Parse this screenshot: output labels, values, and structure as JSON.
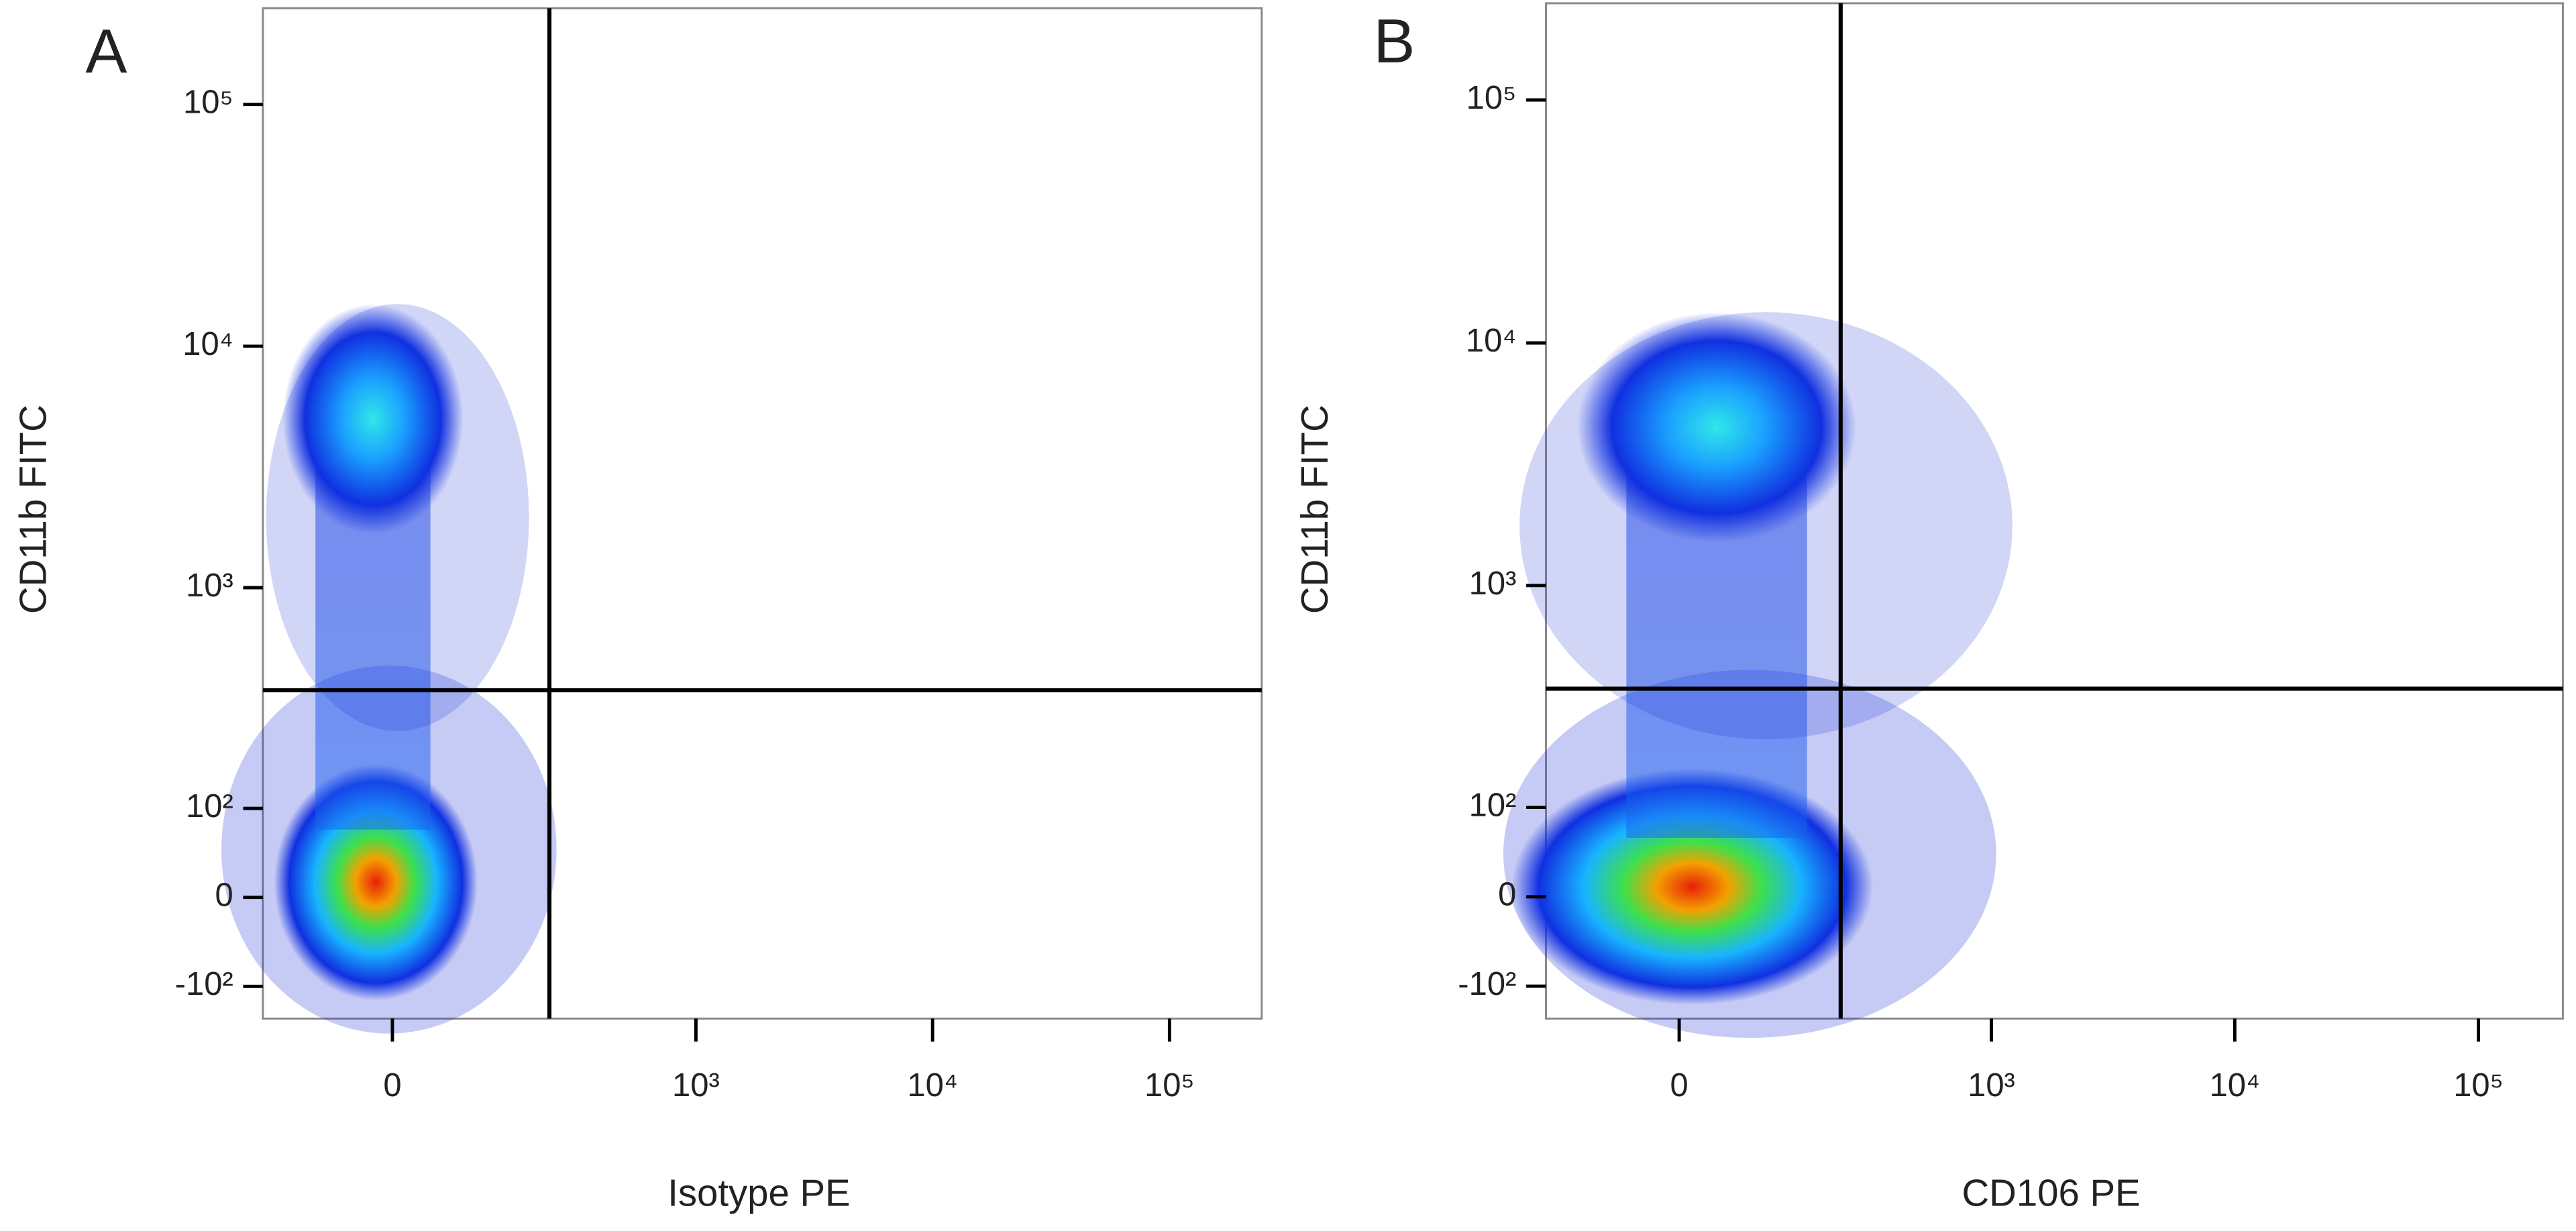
{
  "chart_data": [
    {
      "type": "scatter",
      "panel": "A",
      "xlabel": "Isotype PE",
      "ylabel": "CD11b FITC",
      "xscale": "biexponential",
      "yscale": "biexponential",
      "xlim": [
        -170,
        245000
      ],
      "ylim": [
        -150,
        250000
      ],
      "xticks": [
        {
          "value": 0,
          "label": "0"
        },
        {
          "value": 1000,
          "label": "10³"
        },
        {
          "value": 10000,
          "label": "10⁴"
        },
        {
          "value": 100000,
          "label": "10⁵"
        }
      ],
      "yticks": [
        {
          "value": -100,
          "label": "-10²"
        },
        {
          "value": 0,
          "label": "0"
        },
        {
          "value": 100,
          "label": "10²"
        },
        {
          "value": 1000,
          "label": "10³"
        },
        {
          "value": 10000,
          "label": "10⁴"
        },
        {
          "value": 100000,
          "label": "10⁵"
        }
      ],
      "x": [
        -17,
        -20
      ],
      "values": [
        15,
        5000
      ],
      "gate": {
        "x": 230,
        "y": 370
      }
    },
    {
      "type": "scatter",
      "panel": "B",
      "xlabel": "CD106 PE",
      "ylabel": "CD11b FITC",
      "xscale": "biexponential",
      "yscale": "biexponential",
      "xlim": [
        -170,
        222000
      ],
      "ylim": [
        -150,
        250000
      ],
      "xticks": [
        {
          "value": 0,
          "label": "0"
        },
        {
          "value": 1000,
          "label": "10³"
        },
        {
          "value": 10000,
          "label": "10⁴"
        },
        {
          "value": 100000,
          "label": "10⁵"
        }
      ],
      "yticks": [
        {
          "value": -100,
          "label": "-10²"
        },
        {
          "value": 0,
          "label": "0"
        },
        {
          "value": 100,
          "label": "10²"
        },
        {
          "value": 1000,
          "label": "10³"
        },
        {
          "value": 10000,
          "label": "10⁴"
        },
        {
          "value": 100000,
          "label": "10⁵"
        }
      ],
      "x": [
        13,
        38
      ],
      "values": [
        10,
        4500
      ],
      "gate": {
        "x": 230,
        "y": 370
      }
    }
  ]
}
